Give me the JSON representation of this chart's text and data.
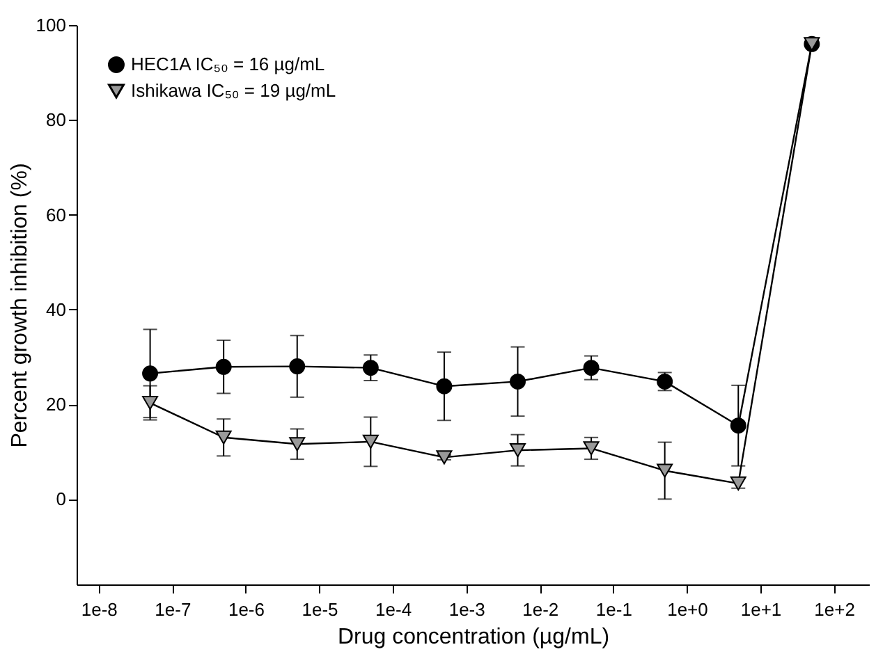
{
  "chart_data": {
    "type": "line",
    "xlabel": "Drug concentration (µg/mL)",
    "ylabel": "Percent growth inhibition (%)",
    "log": "x",
    "x": [
      5e-08,
      5e-07,
      5e-06,
      5e-05,
      0.0005,
      0.005,
      0.05,
      0.5,
      5,
      50
    ],
    "series": [
      {
        "name": "HEC1A IC₅₀ = 16 µg/mL",
        "color": "#000000",
        "marker": "circle",
        "values": [
          26.5,
          27.9,
          28,
          27.7,
          23.8,
          24.8,
          27.7,
          24.8,
          15.5,
          96
        ],
        "errors": [
          9.3,
          5.6,
          6.5,
          2.7,
          7.2,
          7.3,
          2.5,
          1.9,
          8.5,
          null
        ]
      },
      {
        "name": "Ishikawa IC₅₀ = 19 µg/mL",
        "color": "#999999",
        "marker": "triangle",
        "values": [
          20.3,
          13,
          11.6,
          12.1,
          8.8,
          10.3,
          10.7,
          6,
          3.3,
          96
        ],
        "errors": [
          3.6,
          3.9,
          3.2,
          5.2,
          0.5,
          3.3,
          2.3,
          6,
          1,
          null
        ]
      }
    ],
    "xlim": [
      5e-09,
      300
    ],
    "xticks": [
      {
        "value": 1e-08,
        "label": "1e-8"
      },
      {
        "value": 1e-07,
        "label": "1e-7"
      },
      {
        "value": 1e-06,
        "label": "1e-6"
      },
      {
        "value": 1e-05,
        "label": "1e-5"
      },
      {
        "value": 0.0001,
        "label": "1e-4"
      },
      {
        "value": 0.001,
        "label": "1e-3"
      },
      {
        "value": 0.01,
        "label": "1e-2"
      },
      {
        "value": 0.1,
        "label": "1e-1"
      },
      {
        "value": 1,
        "label": "1e+0"
      },
      {
        "value": 10,
        "label": "1e+1"
      },
      {
        "value": 100,
        "label": "1e+2"
      }
    ],
    "ylim": [
      -18,
      100
    ],
    "yticks": [
      0,
      20,
      40,
      60,
      80,
      100
    ],
    "grid": false,
    "legend": "top left",
    "line_style": "solid"
  }
}
